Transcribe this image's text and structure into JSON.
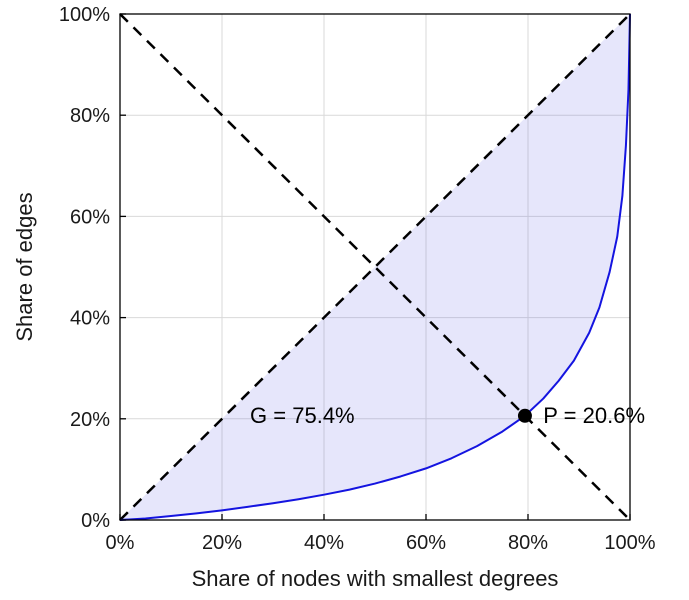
{
  "chart_data": {
    "type": "line",
    "title": "",
    "xlabel": "Share of nodes with smallest degrees",
    "ylabel": "Share of edges",
    "xlim": [
      0,
      100
    ],
    "ylim": [
      0,
      100
    ],
    "grid": true,
    "x_tick_labels": [
      "0%",
      "20%",
      "40%",
      "60%",
      "80%",
      "100%"
    ],
    "y_tick_labels": [
      "0%",
      "20%",
      "40%",
      "60%",
      "80%",
      "100%"
    ],
    "x_tick_values": [
      0,
      20,
      40,
      60,
      80,
      100
    ],
    "y_tick_values": [
      0,
      20,
      40,
      60,
      80,
      100
    ],
    "series": [
      {
        "name": "lorenz-curve",
        "color": "#1414e0",
        "x": [
          0,
          5,
          10,
          15,
          20,
          25,
          30,
          35,
          40,
          45,
          50,
          55,
          60,
          65,
          70,
          75,
          79.4,
          83,
          86,
          89,
          92,
          94,
          96,
          97.5,
          98.5,
          99.2,
          99.7,
          100
        ],
        "y": [
          0,
          0.3,
          0.8,
          1.3,
          1.9,
          2.6,
          3.3,
          4.1,
          5.0,
          6.0,
          7.2,
          8.6,
          10.2,
          12.2,
          14.6,
          17.5,
          20.6,
          24,
          27.5,
          31.5,
          37,
          42,
          49,
          56,
          64,
          74,
          85,
          100
        ]
      }
    ],
    "reference_lines": [
      {
        "name": "equality-diagonal",
        "x": [
          0,
          100
        ],
        "y": [
          0,
          100
        ],
        "style": "dashed",
        "color": "#000000"
      },
      {
        "name": "anti-diagonal",
        "x": [
          0,
          100
        ],
        "y": [
          100,
          0
        ],
        "style": "dashed",
        "color": "#000000"
      }
    ],
    "fill_between": {
      "upper": "equality-diagonal",
      "lower": "lorenz-curve",
      "color": "#5a5ae6",
      "opacity": 0.15
    },
    "point": {
      "x": 79.4,
      "y": 20.6,
      "color": "#000000"
    },
    "annotations": [
      {
        "text": "G = 75.4%",
        "x": 25.5,
        "y": 20.6
      },
      {
        "text": "P = 20.6%",
        "x": 83.0,
        "y": 20.6
      }
    ],
    "gini_percent": 75.4,
    "p_percent": 20.6,
    "colors": {
      "grid": "#d9d9d9",
      "axes_box": "#000000",
      "tick_label": "#1a1a1a"
    },
    "legend_position": "none"
  }
}
